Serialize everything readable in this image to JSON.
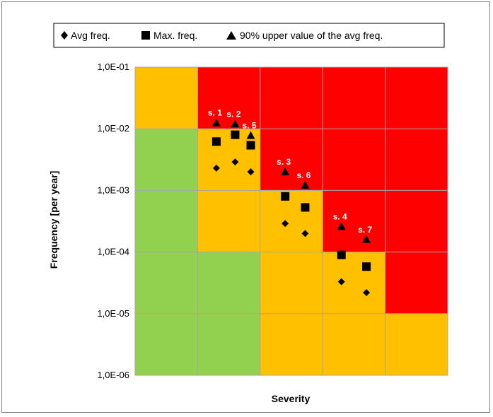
{
  "chart_data": {
    "type": "scatter",
    "title": "",
    "xlabel": "Severity",
    "ylabel": "Frequency [per year]",
    "y_scale": "log",
    "ylim": [
      1e-06,
      0.1
    ],
    "y_ticks": [
      "1,0E-06",
      "1,0E-05",
      "1,0E-04",
      "1,0E-03",
      "1,0E-02",
      "1,0E-01"
    ],
    "xlim": [
      0,
      5
    ],
    "grid": true,
    "legend_position": "top",
    "colors": {
      "green": "#92d050",
      "orange": "#ffc000",
      "red": "#ff0000",
      "grid": "#a6a6a6",
      "marker": "#000000",
      "label": "#ffffff"
    },
    "risk_matrix": [
      [
        "orange",
        "red",
        "red",
        "red",
        "red"
      ],
      [
        "green",
        "orange",
        "red",
        "red",
        "red"
      ],
      [
        "green",
        "orange",
        "orange",
        "red",
        "red"
      ],
      [
        "green",
        "green",
        "orange",
        "orange",
        "red"
      ],
      [
        "green",
        "green",
        "orange",
        "orange",
        "orange"
      ]
    ],
    "series": [
      {
        "name": "Avg freq.",
        "marker": "diamond",
        "points": [
          {
            "x": 1.3,
            "y": 0.0023
          },
          {
            "x": 1.6,
            "y": 0.0029
          },
          {
            "x": 1.85,
            "y": 0.002
          },
          {
            "x": 2.4,
            "y": 0.00029
          },
          {
            "x": 2.72,
            "y": 0.0002
          },
          {
            "x": 3.3,
            "y": 3.3e-05
          },
          {
            "x": 3.7,
            "y": 2.2e-05
          }
        ]
      },
      {
        "name": "Max. freq.",
        "marker": "square",
        "points": [
          {
            "x": 1.3,
            "y": 0.0062
          },
          {
            "x": 1.6,
            "y": 0.008
          },
          {
            "x": 1.85,
            "y": 0.0054
          },
          {
            "x": 2.4,
            "y": 0.0008
          },
          {
            "x": 2.72,
            "y": 0.00053
          },
          {
            "x": 3.3,
            "y": 9e-05
          },
          {
            "x": 3.7,
            "y": 5.8e-05
          }
        ]
      },
      {
        "name": "90% upper value of the avg freq.",
        "marker": "triangle",
        "points": [
          {
            "x": 1.3,
            "y": 0.0125
          },
          {
            "x": 1.6,
            "y": 0.012
          },
          {
            "x": 1.85,
            "y": 0.0078
          },
          {
            "x": 2.4,
            "y": 0.002
          },
          {
            "x": 2.72,
            "y": 0.00122
          },
          {
            "x": 3.3,
            "y": 0.00026
          },
          {
            "x": 3.7,
            "y": 0.00016
          }
        ]
      }
    ],
    "scenario_labels": [
      {
        "text": "s. 1",
        "x": 1.3,
        "y": 0.0125
      },
      {
        "text": "s. 2",
        "x": 1.6,
        "y": 0.012
      },
      {
        "text": "s. 5",
        "x": 1.85,
        "y": 0.0078
      },
      {
        "text": "s. 3",
        "x": 2.4,
        "y": 0.002
      },
      {
        "text": "s. 6",
        "x": 2.72,
        "y": 0.00122
      },
      {
        "text": "s. 4",
        "x": 3.3,
        "y": 0.00026
      },
      {
        "text": "s. 7",
        "x": 3.7,
        "y": 0.00016
      }
    ]
  }
}
